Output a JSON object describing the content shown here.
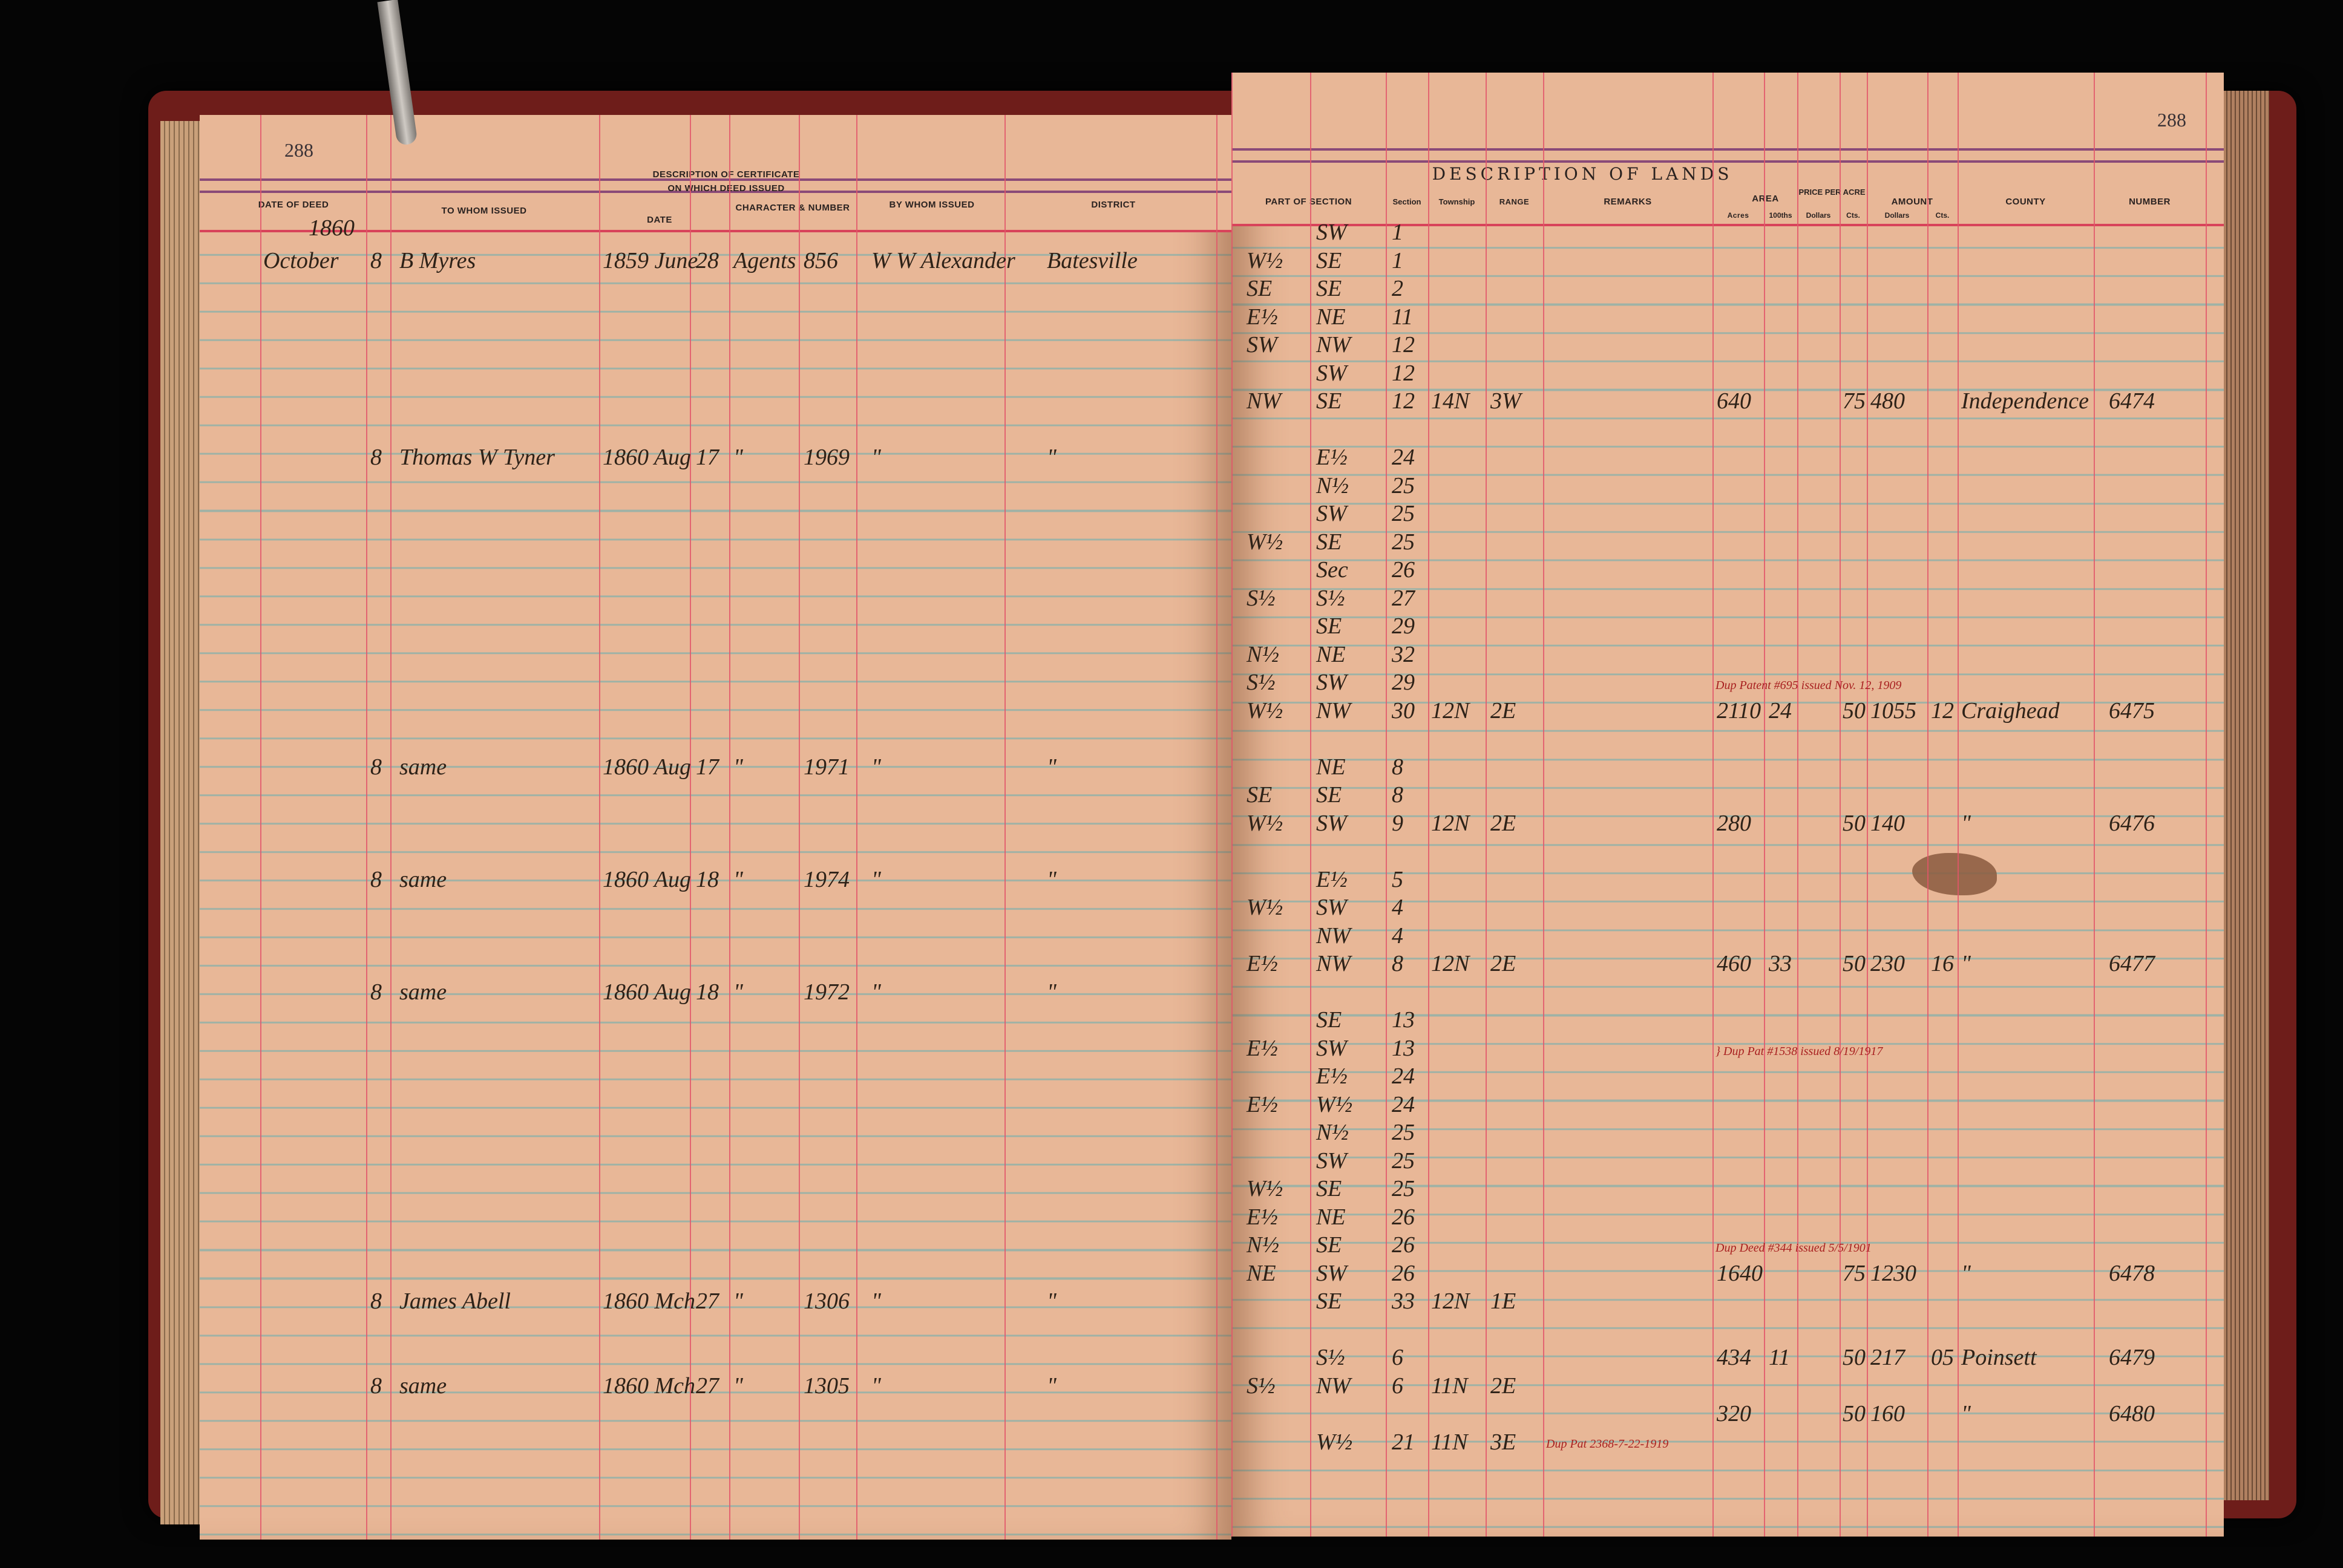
{
  "left_page": {
    "page_number": "288",
    "headers": {
      "date_of_deed": "DATE OF DEED",
      "to_whom_issued": "TO WHOM ISSUED",
      "description_of_certificate": "DESCRIPTION OF CERTIFICATE",
      "on_which_deed_issued": "ON WHICH DEED ISSUED",
      "date": "DATE",
      "character_number": "CHARACTER & NUMBER",
      "by_whom_issued": "BY WHOM ISSUED",
      "district": "DISTRICT"
    },
    "year": "1860"
  },
  "right_page": {
    "page_number": "288",
    "headers": {
      "title": "DESCRIPTION OF LANDS",
      "part_of_section": "PART OF SECTION",
      "section": "Section",
      "township": "Township",
      "range": "RANGE",
      "remarks": "REMARKS",
      "area": "AREA",
      "acres": "Acres",
      "hundredths": "100ths",
      "price_per_acre": "PRICE PER ACRE",
      "price_dollars": "Dollars",
      "price_cts": "Cts.",
      "amount": "AMOUNT",
      "amount_dollars": "Dollars",
      "amount_cts": "Cts.",
      "county": "COUNTY",
      "number": "NUMBER"
    }
  },
  "lines": [
    {
      "part_b": "SW",
      "section": "1"
    },
    {
      "date_month": "October",
      "date_day": "8",
      "to_whom": "B Myres",
      "cert_date": "1859 June",
      "cert_day": "28",
      "character": "Agents",
      "cert_number": "856",
      "by_whom": "W W Alexander",
      "district": "Batesville",
      "part_a": "W½",
      "part_b": "SE",
      "section": "1"
    },
    {
      "part_a": "SE",
      "part_b": "SE",
      "section": "2"
    },
    {
      "part_a": "E½",
      "part_b": "NE",
      "section": "11"
    },
    {
      "part_a": "SW",
      "part_b": "NW",
      "section": "12"
    },
    {
      "part_b": "SW",
      "section": "12"
    },
    {
      "part_a": "NW",
      "part_b": "SE",
      "section": "12",
      "township": "14N",
      "range": "3W",
      "acres": "640",
      "price_cts": "75",
      "amount_dollars": "480",
      "county": "Independence",
      "number": "6474"
    },
    {},
    {
      "date_day": "8",
      "to_whom": "Thomas W Tyner",
      "cert_date": "1860 Aug",
      "cert_day": "17",
      "character": "\"",
      "cert_number": "1969",
      "by_whom": "\"",
      "district": "\"",
      "part_b": "E½",
      "section": "24"
    },
    {
      "part_b": "N½",
      "section": "25"
    },
    {
      "part_b": "SW",
      "section": "25"
    },
    {
      "part_a": "W½",
      "part_b": "SE",
      "section": "25"
    },
    {
      "part_b": "Sec",
      "section": "26"
    },
    {
      "part_a": "S½",
      "part_b": "S½",
      "section": "27"
    },
    {
      "part_b": "SE",
      "section": "29"
    },
    {
      "part_a": "N½",
      "part_b": "NE",
      "section": "32"
    },
    {
      "part_a": "S½",
      "part_b": "SW",
      "section": "29",
      "note": "Dup Patent #695 issued Nov. 12, 1909"
    },
    {
      "part_a": "W½",
      "part_b": "NW",
      "section": "30",
      "township": "12N",
      "range": "2E",
      "acres": "2110",
      "hundredths": "24",
      "price_cts": "50",
      "amount_dollars": "1055",
      "amount_cts": "12",
      "county": "Craighead",
      "number": "6475"
    },
    {},
    {
      "date_day": "8",
      "to_whom": "same",
      "cert_date": "1860 Aug",
      "cert_day": "17",
      "character": "\"",
      "cert_number": "1971",
      "by_whom": "\"",
      "district": "\"",
      "part_b": "NE",
      "section": "8"
    },
    {
      "part_a": "SE",
      "part_b": "SE",
      "section": "8"
    },
    {
      "part_a": "W½",
      "part_b": "SW",
      "section": "9",
      "township": "12N",
      "range": "2E",
      "acres": "280",
      "price_cts": "50",
      "amount_dollars": "140",
      "county": "\"",
      "number": "6476"
    },
    {},
    {
      "date_day": "8",
      "to_whom": "same",
      "cert_date": "1860 Aug",
      "cert_day": "18",
      "character": "\"",
      "cert_number": "1974",
      "by_whom": "\"",
      "district": "\"",
      "part_b": "E½",
      "section": "5"
    },
    {
      "part_a": "W½",
      "part_b": "SW",
      "section": "4"
    },
    {
      "part_b": "NW",
      "section": "4"
    },
    {
      "part_a": "E½",
      "part_b": "NW",
      "section": "8",
      "township": "12N",
      "range": "2E",
      "acres": "460",
      "hundredths": "33",
      "price_cts": "50",
      "amount_dollars": "230",
      "amount_cts": "16",
      "county": "\"",
      "number": "6477"
    },
    {
      "date_day": "8",
      "to_whom": "same",
      "cert_date": "1860 Aug",
      "cert_day": "18",
      "character": "\"",
      "cert_number": "1972",
      "by_whom": "\"",
      "district": "\""
    },
    {
      "part_b": "SE",
      "section": "13"
    },
    {
      "part_a": "E½",
      "part_b": "SW",
      "section": "13",
      "note": "} Dup Pat #1538 issued 8/19/1917"
    },
    {
      "part_b": "E½",
      "section": "24"
    },
    {
      "part_a": "E½",
      "part_b": "W½",
      "section": "24"
    },
    {
      "part_b": "N½",
      "section": "25"
    },
    {
      "part_b": "SW",
      "section": "25"
    },
    {
      "part_a": "W½",
      "part_b": "SE",
      "section": "25"
    },
    {
      "part_a": "E½",
      "part_b": "NE",
      "section": "26"
    },
    {
      "part_a": "N½",
      "part_b": "SE",
      "section": "26",
      "note": "Dup Deed #344 issued 5/5/1901"
    },
    {
      "part_a": "NE",
      "part_b": "SW",
      "section": "26",
      "acres": "1640",
      "price_cts": "75",
      "amount_dollars": "1230",
      "county": "\"",
      "number": "6478"
    },
    {
      "date_day": "8",
      "to_whom": "James Abell",
      "cert_date": "1860 Mch",
      "cert_day": "27",
      "character": "\"",
      "cert_number": "1306",
      "by_whom": "\"",
      "district": "\"",
      "part_b": "SE",
      "section": "33",
      "township": "12N",
      "range": "1E"
    },
    {},
    {
      "part_b": "S½",
      "section": "6",
      "acres": "434",
      "hundredths": "11",
      "price_cts": "50",
      "amount_dollars": "217",
      "amount_cts": "05",
      "county": "Poinsett",
      "number": "6479"
    },
    {
      "date_day": "8",
      "to_whom": "same",
      "cert_date": "1860 Mch",
      "cert_day": "27",
      "character": "\"",
      "cert_number": "1305",
      "by_whom": "\"",
      "district": "\"",
      "part_a": "S½",
      "part_b": "NW",
      "section": "6",
      "township": "11N",
      "range": "2E"
    },
    {
      "acres": "320",
      "price_cts": "50",
      "amount_dollars": "160",
      "county": "\"",
      "number": "6480"
    },
    {
      "part_b": "W½",
      "section": "21",
      "township": "11N",
      "range": "3E",
      "remarks": "Dup Pat 2368-7-22-1919"
    }
  ],
  "colors": {
    "paper": "#e8b797",
    "ruling_red": "#e2566a",
    "ruling_blue": "#9eb2a6",
    "ink": "#2e2218",
    "red_ink": "#a82020",
    "cover": "#6e1d1a"
  }
}
